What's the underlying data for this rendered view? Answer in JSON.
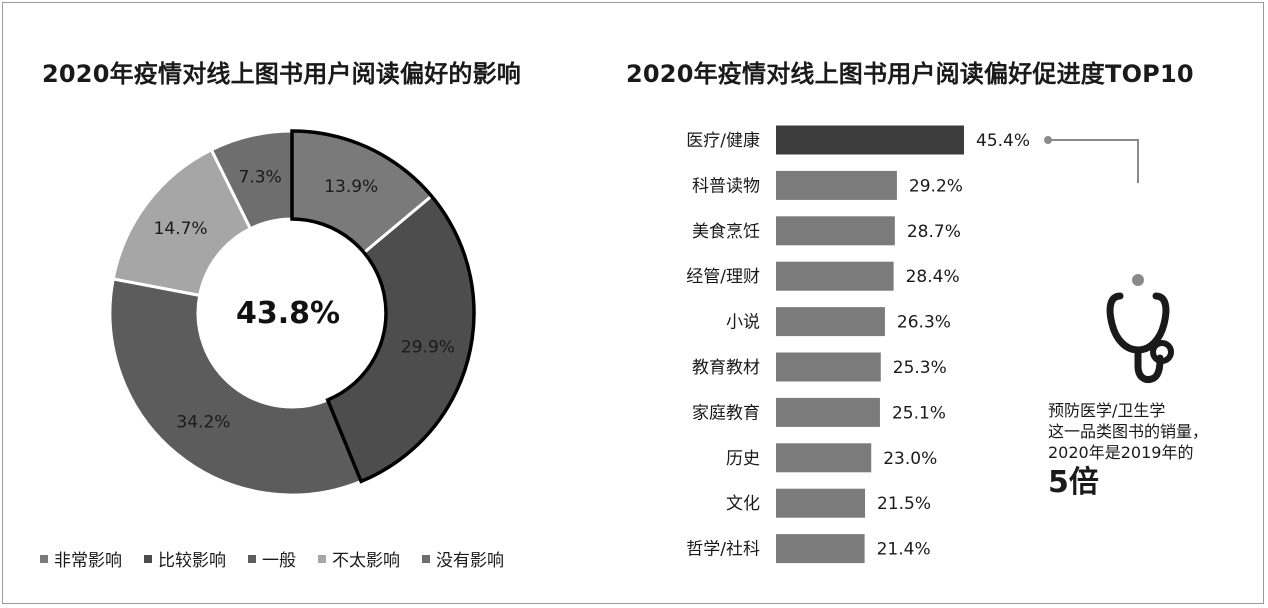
{
  "left_title": "2020年疫情对线上图书用户阅读偏好的影响",
  "right_title": "2020年疫情对线上图书用户阅读偏好促进度TOP10",
  "center_label": "43.8%",
  "note": {
    "line1": "预防医学/卫生学",
    "line2": "这一品类图书的销量，",
    "line3": "2020年是2019年的",
    "big": "5倍"
  },
  "icon": "stethoscope-icon",
  "chart_data": [
    {
      "type": "pie",
      "variant": "donut",
      "title": "2020年疫情对线上图书用户阅读偏好的影响",
      "center_text": "43.8%",
      "slices": [
        {
          "label": "非常影响",
          "value": 13.9,
          "value_label": "13.9%",
          "color": "#7a7a7a",
          "highlighted": true
        },
        {
          "label": "比较影响",
          "value": 29.9,
          "value_label": "29.9%",
          "color": "#4d4d4d",
          "highlighted": true
        },
        {
          "label": "一般",
          "value": 34.2,
          "value_label": "34.2%",
          "color": "#5c5c5c",
          "highlighted": false
        },
        {
          "label": "不太影响",
          "value": 14.7,
          "value_label": "14.7%",
          "color": "#a6a6a6",
          "highlighted": false
        },
        {
          "label": "没有影响",
          "value": 7.3,
          "value_label": "7.3%",
          "color": "#6e6e6e",
          "highlighted": false
        }
      ],
      "legend_placement": "bottom"
    },
    {
      "type": "bar",
      "orientation": "horizontal",
      "title": "2020年疫情对线上图书用户阅读偏好促进度TOP10",
      "categories": [
        "医疗/健康",
        "科普读物",
        "美食烹饪",
        "经管/理财",
        "小说",
        "教育教材",
        "家庭教育",
        "历史",
        "文化",
        "哲学/社科"
      ],
      "values": [
        45.4,
        29.2,
        28.7,
        28.4,
        26.3,
        25.3,
        25.1,
        23.0,
        21.5,
        21.4
      ],
      "value_labels": [
        "45.4%",
        "29.2%",
        "28.7%",
        "28.4%",
        "26.3%",
        "25.3%",
        "25.1%",
        "23.0%",
        "21.5%",
        "21.4%"
      ],
      "colors": {
        "top": "#3c3c3c",
        "rest": "#7b7b7b"
      }
    }
  ]
}
